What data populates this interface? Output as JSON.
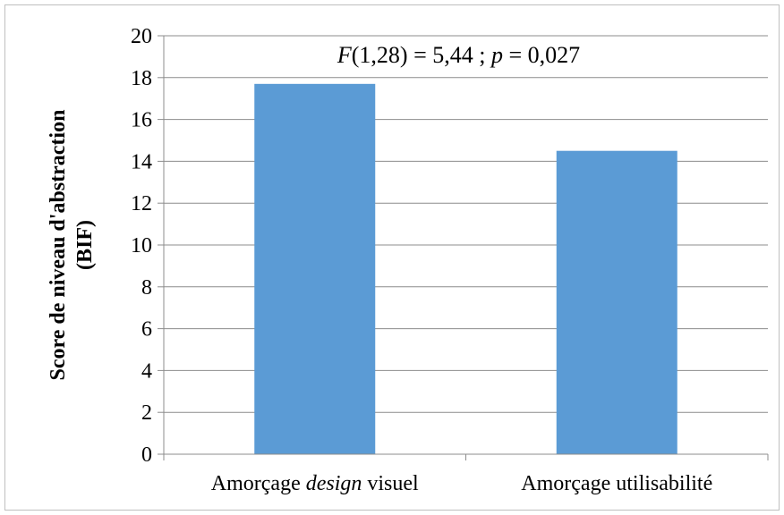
{
  "chart_data": {
    "type": "bar",
    "categories": [
      {
        "parts": [
          {
            "text": "Amorçage ",
            "italic": false
          },
          {
            "text": "design",
            "italic": true
          },
          {
            "text": " visuel",
            "italic": false
          }
        ]
      },
      {
        "parts": [
          {
            "text": "Amorçage utilisabilité",
            "italic": false
          }
        ]
      }
    ],
    "values": [
      17.7,
      14.5
    ],
    "ylabel_lines": [
      "Score de niveau d'abstraction",
      "(BIF)"
    ],
    "ylim": [
      0,
      20
    ],
    "yticks": [
      "0",
      "2",
      "4",
      "6",
      "8",
      "10",
      "12",
      "14",
      "16",
      "18",
      "20"
    ],
    "grid": true,
    "bar_color": "#5b9bd5",
    "annotation": {
      "parts": [
        {
          "text": "F",
          "italic": true
        },
        {
          "text": "(1,28) = 5,44 ; ",
          "italic": false
        },
        {
          "text": "p",
          "italic": true
        },
        {
          "text": " = 0,027",
          "italic": false
        }
      ]
    }
  }
}
